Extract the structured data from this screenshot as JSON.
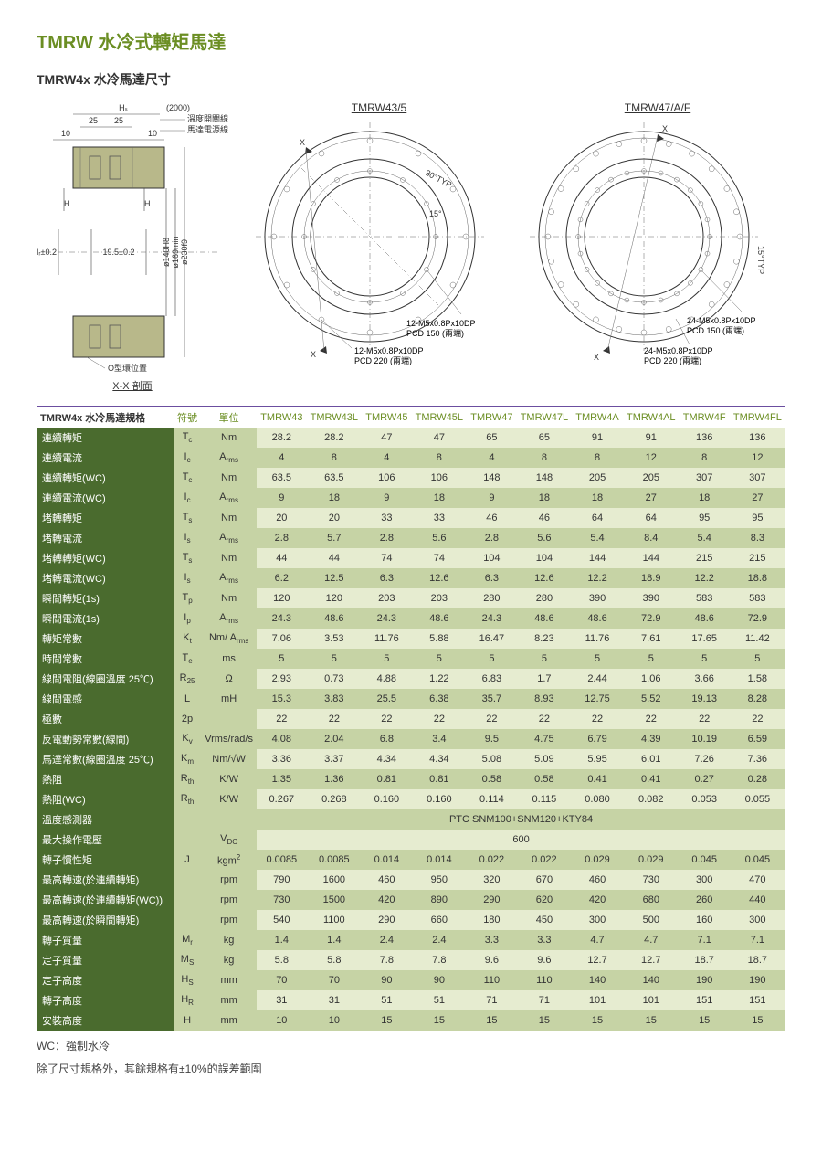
{
  "header": {
    "title": "TMRW 水冷式轉矩馬達",
    "subtitle": "TMRW4x 水冷馬達尺寸"
  },
  "diagrams": {
    "section": {
      "label_hs": "Hₛ",
      "label_2000": "(2000)",
      "dim_25a": "25",
      "dim_25b": "25",
      "dim_10a": "10",
      "dim_10b": "10",
      "label_temp": "溫度開關線",
      "label_power": "馬達電源線",
      "label_H": "H",
      "label_HR": "Hᵣ±0.2",
      "label_195": "19.5±0.2",
      "label_140": "ø140H8",
      "label_169": "ø169min",
      "label_230": "ø230f9",
      "label_oring": "O型環位置",
      "label_xx": "X-X 剖面"
    },
    "circleA": {
      "title": "TMRW43/5",
      "callout1": "12-M5x0.8Px10DP\nPCD 150 (兩端)",
      "callout2": "12-M5x0.8Px10DP\nPCD 220 (兩端)",
      "angle1": "30°TYP",
      "angle2": "15°",
      "x": "X"
    },
    "circleB": {
      "title": "TMRW47/A/F",
      "callout1": "24-M5x0.8Px10DP\nPCD 150 (兩端)",
      "callout2": "24-M5x0.8Px10DP\nPCD 220 (兩端)",
      "angle2": "15°TYP",
      "x": "X"
    }
  },
  "table": {
    "title": "TMRW4x 水冷馬達規格",
    "col_sym": "符號",
    "col_unit": "單位",
    "models": [
      "TMRW43",
      "TMRW43L",
      "TMRW45",
      "TMRW45L",
      "TMRW47",
      "TMRW47L",
      "TMRW4A",
      "TMRW4AL",
      "TMRW4F",
      "TMRW4FL"
    ],
    "rows": [
      {
        "label": "連續轉矩",
        "sym": "T<sub>c</sub>",
        "unit": "Nm",
        "vals": [
          "28.2",
          "28.2",
          "47",
          "47",
          "65",
          "65",
          "91",
          "91",
          "136",
          "136"
        ]
      },
      {
        "label": "連續電流",
        "sym": "I<sub>c</sub>",
        "unit": "A<sub>rms</sub>",
        "vals": [
          "4",
          "8",
          "4",
          "8",
          "4",
          "8",
          "8",
          "12",
          "8",
          "12"
        ]
      },
      {
        "label": "連續轉矩(WC)",
        "sym": "T<sub>c</sub>",
        "unit": "Nm",
        "vals": [
          "63.5",
          "63.5",
          "106",
          "106",
          "148",
          "148",
          "205",
          "205",
          "307",
          "307"
        ]
      },
      {
        "label": "連續電流(WC)",
        "sym": "I<sub>c</sub>",
        "unit": "A<sub>rms</sub>",
        "vals": [
          "9",
          "18",
          "9",
          "18",
          "9",
          "18",
          "18",
          "27",
          "18",
          "27"
        ]
      },
      {
        "label": "堵轉轉矩",
        "sym": "T<sub>s</sub>",
        "unit": "Nm",
        "vals": [
          "20",
          "20",
          "33",
          "33",
          "46",
          "46",
          "64",
          "64",
          "95",
          "95"
        ]
      },
      {
        "label": "堵轉電流",
        "sym": "I<sub>s</sub>",
        "unit": "A<sub>rms</sub>",
        "vals": [
          "2.8",
          "5.7",
          "2.8",
          "5.6",
          "2.8",
          "5.6",
          "5.4",
          "8.4",
          "5.4",
          "8.3"
        ]
      },
      {
        "label": "堵轉轉矩(WC)",
        "sym": "T<sub>s</sub>",
        "unit": "Nm",
        "vals": [
          "44",
          "44",
          "74",
          "74",
          "104",
          "104",
          "144",
          "144",
          "215",
          "215"
        ]
      },
      {
        "label": "堵轉電流(WC)",
        "sym": "I<sub>s</sub>",
        "unit": "A<sub>rms</sub>",
        "vals": [
          "6.2",
          "12.5",
          "6.3",
          "12.6",
          "6.3",
          "12.6",
          "12.2",
          "18.9",
          "12.2",
          "18.8"
        ]
      },
      {
        "label": "瞬間轉矩(1s)",
        "sym": "T<sub>p</sub>",
        "unit": "Nm",
        "vals": [
          "120",
          "120",
          "203",
          "203",
          "280",
          "280",
          "390",
          "390",
          "583",
          "583"
        ]
      },
      {
        "label": "瞬間電流(1s)",
        "sym": "I<sub>p</sub>",
        "unit": "A<sub>rms</sub>",
        "vals": [
          "24.3",
          "48.6",
          "24.3",
          "48.6",
          "24.3",
          "48.6",
          "48.6",
          "72.9",
          "48.6",
          "72.9"
        ]
      },
      {
        "label": "轉矩常數",
        "sym": "K<sub>t</sub>",
        "unit": "Nm/ A<sub>rms</sub>",
        "vals": [
          "7.06",
          "3.53",
          "11.76",
          "5.88",
          "16.47",
          "8.23",
          "11.76",
          "7.61",
          "17.65",
          "11.42"
        ]
      },
      {
        "label": "時間常數",
        "sym": "T<sub>e</sub>",
        "unit": "ms",
        "vals": [
          "5",
          "5",
          "5",
          "5",
          "5",
          "5",
          "5",
          "5",
          "5",
          "5"
        ]
      },
      {
        "label": "線間電阻(線圈溫度 25℃)",
        "sym": "R<sub>25</sub>",
        "unit": "Ω",
        "vals": [
          "2.93",
          "0.73",
          "4.88",
          "1.22",
          "6.83",
          "1.7",
          "2.44",
          "1.06",
          "3.66",
          "1.58"
        ]
      },
      {
        "label": "線間電感",
        "sym": "L",
        "unit": "mH",
        "vals": [
          "15.3",
          "3.83",
          "25.5",
          "6.38",
          "35.7",
          "8.93",
          "12.75",
          "5.52",
          "19.13",
          "8.28"
        ]
      },
      {
        "label": "極數",
        "sym": "2p",
        "unit": "",
        "vals": [
          "22",
          "22",
          "22",
          "22",
          "22",
          "22",
          "22",
          "22",
          "22",
          "22"
        ]
      },
      {
        "label": "反電動勢常數(線間)",
        "sym": "K<sub>v</sub>",
        "unit": "Vrms/rad/s",
        "vals": [
          "4.08",
          "2.04",
          "6.8",
          "3.4",
          "9.5",
          "4.75",
          "6.79",
          "4.39",
          "10.19",
          "6.59"
        ]
      },
      {
        "label": "馬達常數(線圈溫度 25℃)",
        "sym": "K<sub>m</sub>",
        "unit": "Nm/√W",
        "vals": [
          "3.36",
          "3.37",
          "4.34",
          "4.34",
          "5.08",
          "5.09",
          "5.95",
          "6.01",
          "7.26",
          "7.36"
        ]
      },
      {
        "label": "熱阻",
        "sym": "R<sub>th</sub>",
        "unit": "K/W",
        "vals": [
          "1.35",
          "1.36",
          "0.81",
          "0.81",
          "0.58",
          "0.58",
          "0.41",
          "0.41",
          "0.27",
          "0.28"
        ]
      },
      {
        "label": "熱阻(WC)",
        "sym": "R<sub>th</sub>",
        "unit": "K/W",
        "vals": [
          "0.267",
          "0.268",
          "0.160",
          "0.160",
          "0.114",
          "0.115",
          "0.080",
          "0.082",
          "0.053",
          "0.055"
        ]
      },
      {
        "label": "溫度感測器",
        "sym": "",
        "unit": "",
        "span": "PTC SNM100+SNM120+KTY84"
      },
      {
        "label": "最大操作電壓",
        "sym": "",
        "unit": "V<sub>DC</sub>",
        "span": "600"
      },
      {
        "label": "轉子慣性矩",
        "sym": "J",
        "unit": "kgm<sup>2</sup>",
        "vals": [
          "0.0085",
          "0.0085",
          "0.014",
          "0.014",
          "0.022",
          "0.022",
          "0.029",
          "0.029",
          "0.045",
          "0.045"
        ]
      },
      {
        "label": "最高轉速(於連續轉矩)",
        "sym": "",
        "unit": "rpm",
        "vals": [
          "790",
          "1600",
          "460",
          "950",
          "320",
          "670",
          "460",
          "730",
          "300",
          "470"
        ]
      },
      {
        "label": "最高轉速(於連續轉矩(WC))",
        "sym": "",
        "unit": "rpm",
        "vals": [
          "730",
          "1500",
          "420",
          "890",
          "290",
          "620",
          "420",
          "680",
          "260",
          "440"
        ]
      },
      {
        "label": "最高轉速(於瞬間轉矩)",
        "sym": "",
        "unit": "rpm",
        "vals": [
          "540",
          "1100",
          "290",
          "660",
          "180",
          "450",
          "300",
          "500",
          "160",
          "300"
        ]
      },
      {
        "label": "轉子質量",
        "sym": "M<sub>r</sub>",
        "unit": "kg",
        "vals": [
          "1.4",
          "1.4",
          "2.4",
          "2.4",
          "3.3",
          "3.3",
          "4.7",
          "4.7",
          "7.1",
          "7.1"
        ]
      },
      {
        "label": "定子質量",
        "sym": "M<sub>S</sub>",
        "unit": "kg",
        "vals": [
          "5.8",
          "5.8",
          "7.8",
          "7.8",
          "9.6",
          "9.6",
          "12.7",
          "12.7",
          "18.7",
          "18.7"
        ]
      },
      {
        "label": "定子高度",
        "sym": "H<sub>S</sub>",
        "unit": "mm",
        "vals": [
          "70",
          "70",
          "90",
          "90",
          "110",
          "110",
          "140",
          "140",
          "190",
          "190"
        ]
      },
      {
        "label": "轉子高度",
        "sym": "H<sub>R</sub>",
        "unit": "mm",
        "vals": [
          "31",
          "31",
          "51",
          "51",
          "71",
          "71",
          "101",
          "101",
          "151",
          "151"
        ]
      },
      {
        "label": "安裝高度",
        "sym": "H",
        "unit": "mm",
        "vals": [
          "10",
          "10",
          "15",
          "15",
          "15",
          "15",
          "15",
          "15",
          "15",
          "15"
        ]
      }
    ]
  },
  "footnotes": {
    "wc": "WC：強制水冷",
    "tol": "除了尺寸規格外，其餘規格有±10%的誤差範圍"
  }
}
